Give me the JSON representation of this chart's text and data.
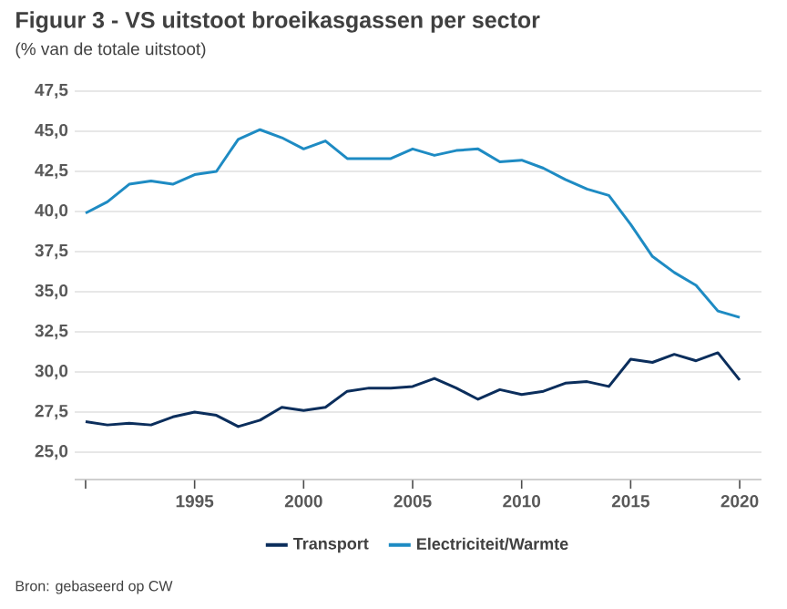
{
  "chart_data": {
    "type": "line",
    "title": "Figuur 3 - VS uitstoot broeikasgassen per sector",
    "subtitle": "(% van de totale uitstoot)",
    "x": [
      1990,
      1991,
      1992,
      1993,
      1994,
      1995,
      1996,
      1997,
      1998,
      1999,
      2000,
      2001,
      2002,
      2003,
      2004,
      2005,
      2006,
      2007,
      2008,
      2009,
      2010,
      2011,
      2012,
      2013,
      2014,
      2015,
      2016,
      2017,
      2018,
      2019,
      2020
    ],
    "series": [
      {
        "name": "Transport",
        "color": "#0b2e5c",
        "values": [
          26.9,
          26.7,
          26.8,
          26.7,
          27.2,
          27.5,
          27.3,
          26.6,
          27.0,
          27.8,
          27.6,
          27.8,
          28.8,
          29.0,
          29.0,
          29.1,
          29.6,
          29.0,
          28.3,
          28.9,
          28.6,
          28.8,
          29.3,
          29.4,
          29.1,
          30.8,
          30.6,
          31.1,
          30.7,
          31.2,
          29.5
        ]
      },
      {
        "name": "Electriciteit/Warmte",
        "color": "#1e8bc3",
        "values": [
          39.9,
          40.6,
          41.7,
          41.9,
          41.7,
          42.3,
          42.5,
          44.5,
          45.1,
          44.6,
          43.9,
          44.4,
          43.3,
          43.3,
          43.3,
          43.9,
          43.5,
          43.8,
          43.9,
          43.1,
          43.2,
          42.7,
          42.0,
          41.4,
          41.0,
          39.2,
          37.2,
          36.2,
          35.4,
          33.8,
          33.4
        ]
      }
    ],
    "xlim": [
      1989.5,
      2021
    ],
    "xticks": [
      {
        "value": 1990,
        "label": null
      },
      1995,
      2000,
      2005,
      2010,
      2015,
      2020
    ],
    "ylim": [
      23.3,
      47.5
    ],
    "yticks": [
      {
        "value": 25,
        "label": "25,0"
      },
      {
        "value": 27.5,
        "label": "27,5"
      },
      {
        "value": 30,
        "label": "30,0"
      },
      {
        "value": 32.5,
        "label": "32,5"
      },
      {
        "value": 35,
        "label": "35,0"
      },
      {
        "value": 37.5,
        "label": "37,5"
      },
      {
        "value": 40,
        "label": "40,0"
      },
      {
        "value": 42.5,
        "label": "42,5"
      },
      {
        "value": 45,
        "label": "45,0"
      },
      {
        "value": 47.5,
        "label": "47,5"
      }
    ],
    "grid": "y",
    "legend": "bottom",
    "marker": "none",
    "line_style": "solid",
    "annotations": [
      "Bron: gebaseerd op CW"
    ]
  }
}
